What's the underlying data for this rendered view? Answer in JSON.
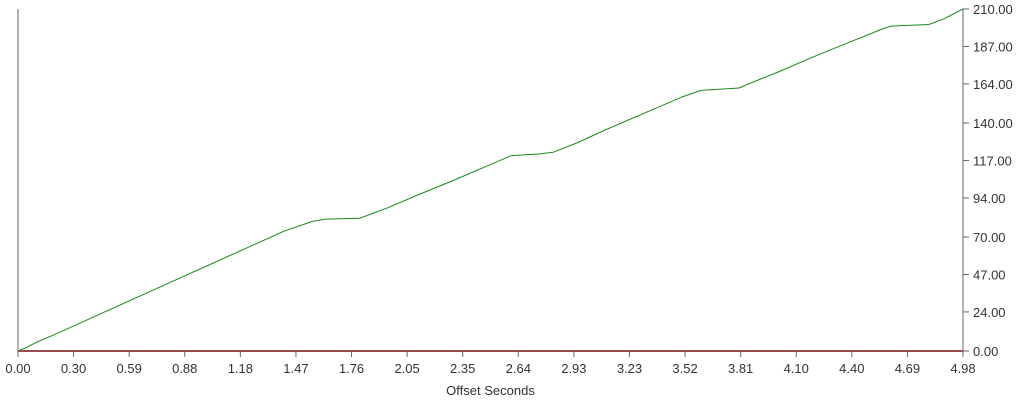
{
  "chart_data": {
    "type": "line",
    "title": "",
    "xlabel": "Offset Seconds",
    "ylabel": "",
    "xlim": [
      0,
      4.98
    ],
    "ylim": [
      0,
      210
    ],
    "x_ticks": [
      "0.00",
      "0.30",
      "0.59",
      "0.88",
      "1.18",
      "1.47",
      "1.76",
      "2.05",
      "2.35",
      "2.64",
      "2.93",
      "3.23",
      "3.52",
      "3.81",
      "4.10",
      "4.40",
      "4.69",
      "4.98"
    ],
    "y_ticks": [
      "0.00",
      "24.00",
      "47.00",
      "70.00",
      "94.00",
      "117.00",
      "140.00",
      "164.00",
      "187.00",
      "210.00"
    ],
    "y_axis_side": "right",
    "grid": false,
    "legend": "none",
    "series": [
      {
        "color": "#1a8a1a",
        "points": [
          [
            0.0,
            0
          ],
          [
            0.05,
            2.5
          ],
          [
            0.1,
            5.5
          ],
          [
            0.2,
            10.5
          ],
          [
            0.4,
            21
          ],
          [
            0.6,
            31.5
          ],
          [
            0.8,
            42
          ],
          [
            1.0,
            52.5
          ],
          [
            1.2,
            63
          ],
          [
            1.4,
            73.5
          ],
          [
            1.55,
            79.5
          ],
          [
            1.62,
            81
          ],
          [
            1.8,
            81.5
          ],
          [
            1.95,
            88
          ],
          [
            2.1,
            95.5
          ],
          [
            2.3,
            105
          ],
          [
            2.5,
            115
          ],
          [
            2.6,
            120
          ],
          [
            2.75,
            121
          ],
          [
            2.82,
            122
          ],
          [
            2.95,
            128
          ],
          [
            3.1,
            136
          ],
          [
            3.3,
            146
          ],
          [
            3.5,
            156
          ],
          [
            3.6,
            160
          ],
          [
            3.8,
            161.5
          ],
          [
            3.86,
            164.5
          ],
          [
            4.0,
            171
          ],
          [
            4.2,
            181
          ],
          [
            4.4,
            190.5
          ],
          [
            4.55,
            197.5
          ],
          [
            4.6,
            199.5
          ],
          [
            4.8,
            200.5
          ],
          [
            4.88,
            204
          ],
          [
            4.98,
            210
          ]
        ]
      },
      {
        "color": "#cc3333",
        "points": [
          [
            0.0,
            0
          ],
          [
            4.98,
            0
          ]
        ]
      }
    ]
  }
}
